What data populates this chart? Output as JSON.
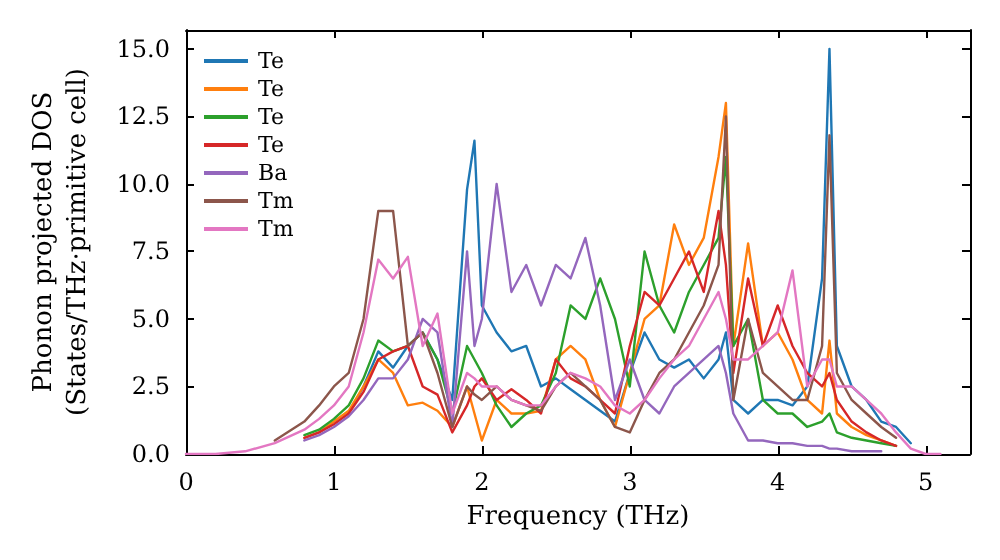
{
  "chart_data": {
    "type": "line",
    "xlabel": "Frequency (THz)",
    "ylabel": "Phonon projected DOS\n(States/THz·primitive cell)",
    "x": [
      0,
      0.2,
      0.4,
      0.6,
      0.8,
      0.9,
      1.0,
      1.1,
      1.2,
      1.3,
      1.4,
      1.5,
      1.6,
      1.7,
      1.8,
      1.9,
      1.95,
      2.0,
      2.1,
      2.2,
      2.3,
      2.4,
      2.5,
      2.6,
      2.7,
      2.8,
      2.9,
      3.0,
      3.1,
      3.2,
      3.3,
      3.4,
      3.5,
      3.6,
      3.65,
      3.7,
      3.8,
      3.9,
      4.0,
      4.1,
      4.2,
      4.3,
      4.35,
      4.4,
      4.5,
      4.6,
      4.7,
      4.8,
      4.9,
      5.0,
      5.1
    ],
    "series": [
      {
        "name": "Te",
        "color": "#1f77b4",
        "values": [
          null,
          null,
          null,
          null,
          null,
          null,
          null,
          1.5,
          2.5,
          3.8,
          3.2,
          4.0,
          4.5,
          3.5,
          2.0,
          9.8,
          11.6,
          5.5,
          4.5,
          3.8,
          4.0,
          2.5,
          2.8,
          2.4,
          2.0,
          1.6,
          1.2,
          3.0,
          4.5,
          3.5,
          3.2,
          3.5,
          2.8,
          3.5,
          4.5,
          2.0,
          1.5,
          2.0,
          2.0,
          1.8,
          2.5,
          6.5,
          15.0,
          4.0,
          2.5,
          2.0,
          1.2,
          1.0,
          0.4,
          null,
          null
        ]
      },
      {
        "name": "Te",
        "color": "#ff7f0e",
        "values": [
          null,
          null,
          null,
          null,
          0.6,
          0.8,
          1.2,
          1.6,
          2.5,
          3.5,
          3.0,
          1.8,
          1.9,
          1.6,
          1.0,
          2.5,
          1.5,
          0.5,
          2.0,
          1.5,
          1.5,
          1.6,
          3.5,
          4.0,
          3.5,
          2.0,
          1.0,
          3.0,
          5.0,
          5.5,
          8.5,
          7.0,
          8.0,
          11.0,
          13.0,
          4.0,
          7.8,
          4.0,
          4.5,
          3.5,
          2.0,
          1.5,
          4.2,
          1.5,
          1.0,
          0.7,
          0.5,
          0.3,
          null,
          null,
          null
        ]
      },
      {
        "name": "Te",
        "color": "#2ca02c",
        "values": [
          null,
          null,
          null,
          null,
          0.7,
          0.9,
          1.3,
          1.8,
          2.8,
          4.2,
          3.8,
          4.0,
          4.5,
          3.5,
          1.5,
          4.0,
          3.5,
          3.0,
          1.8,
          1.0,
          1.5,
          1.8,
          3.0,
          5.5,
          5.0,
          6.5,
          5.0,
          2.5,
          7.5,
          5.5,
          4.5,
          6.0,
          7.0,
          8.0,
          11.0,
          4.0,
          5.0,
          2.0,
          1.5,
          1.5,
          1.0,
          1.2,
          1.5,
          0.8,
          0.6,
          0.5,
          0.4,
          0.3,
          null,
          null,
          null
        ]
      },
      {
        "name": "Te",
        "color": "#d62728",
        "values": [
          null,
          null,
          null,
          null,
          0.6,
          0.8,
          1.1,
          1.5,
          2.3,
          3.5,
          3.8,
          4.0,
          2.5,
          2.2,
          0.8,
          1.8,
          2.5,
          2.8,
          2.0,
          2.4,
          2.0,
          1.5,
          3.5,
          2.8,
          2.5,
          2.0,
          1.5,
          4.0,
          6.0,
          5.5,
          6.5,
          7.5,
          6.0,
          9.0,
          7.0,
          3.0,
          6.5,
          4.0,
          5.5,
          4.0,
          3.0,
          2.5,
          3.0,
          2.0,
          1.2,
          0.8,
          0.5,
          0.3,
          null,
          null,
          null
        ]
      },
      {
        "name": "Ba",
        "color": "#9467bd",
        "values": [
          null,
          null,
          null,
          null,
          0.5,
          0.7,
          1.0,
          1.4,
          2.0,
          2.8,
          2.8,
          3.5,
          5.0,
          4.5,
          1.0,
          7.5,
          4.0,
          5.0,
          10.0,
          6.0,
          7.0,
          5.5,
          7.0,
          6.5,
          8.0,
          5.5,
          2.0,
          3.5,
          2.0,
          1.5,
          2.5,
          3.0,
          3.5,
          4.0,
          3.0,
          1.5,
          0.5,
          0.5,
          0.4,
          0.4,
          0.3,
          0.3,
          0.2,
          0.2,
          0.1,
          0.1,
          0.1,
          null,
          null,
          null,
          null
        ]
      },
      {
        "name": "Tm",
        "color": "#8c564b",
        "values": [
          null,
          null,
          null,
          0.5,
          1.2,
          1.8,
          2.5,
          3.0,
          5.0,
          9.0,
          9.0,
          4.0,
          4.5,
          3.0,
          1.0,
          2.5,
          2.2,
          2.0,
          2.5,
          2.0,
          1.8,
          1.6,
          2.5,
          3.0,
          2.5,
          2.0,
          1.0,
          0.8,
          2.0,
          3.0,
          3.5,
          4.5,
          5.5,
          7.0,
          12.5,
          2.0,
          5.0,
          3.0,
          2.5,
          2.0,
          2.0,
          4.0,
          11.8,
          3.0,
          2.0,
          1.5,
          1.0,
          0.6,
          null,
          null,
          null
        ]
      },
      {
        "name": "Tm",
        "color": "#e377c2",
        "values": [
          0,
          0,
          0.1,
          0.4,
          0.9,
          1.3,
          1.8,
          2.5,
          4.5,
          7.2,
          6.5,
          7.3,
          4.0,
          5.2,
          1.5,
          3.0,
          2.8,
          2.5,
          2.5,
          2.0,
          1.8,
          1.8,
          2.5,
          3.0,
          2.8,
          2.5,
          1.8,
          1.5,
          2.0,
          2.8,
          3.5,
          4.0,
          5.0,
          6.0,
          5.0,
          3.5,
          3.5,
          4.0,
          4.5,
          6.8,
          2.5,
          3.5,
          3.5,
          2.5,
          2.5,
          2.0,
          1.5,
          0.8,
          0.2,
          0,
          0
        ]
      }
    ],
    "xlim": [
      0,
      5.3
    ],
    "xticks": [
      0,
      1,
      2,
      3,
      4,
      5
    ],
    "ylim": [
      0,
      15.7
    ],
    "yticks": [
      {
        "value": 0,
        "label": "0.0"
      },
      {
        "value": 2.5,
        "label": "2.5"
      },
      {
        "value": 5,
        "label": "5.0"
      },
      {
        "value": 7.5,
        "label": "7.5"
      },
      {
        "value": 10,
        "label": "10.0"
      },
      {
        "value": 12.5,
        "label": "12.5"
      },
      {
        "value": 15,
        "label": "15.0"
      }
    ],
    "grid": false,
    "legend": "top left",
    "marker": "none",
    "line_style": "solid"
  }
}
